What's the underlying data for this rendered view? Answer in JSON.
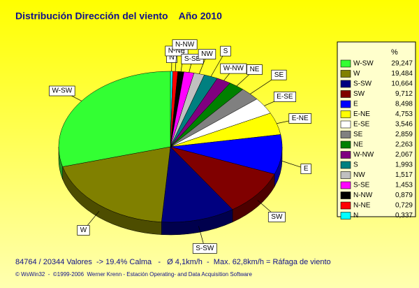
{
  "chart_data": {
    "type": "pie",
    "title": "Distribución Dirección del viento    Año 2010",
    "legend_title": "%",
    "categories": [
      "W-SW",
      "W",
      "S-SW",
      "SW",
      "E",
      "E-NE",
      "E-SE",
      "SE",
      "NE",
      "W-NW",
      "S",
      "NW",
      "S-SE",
      "N-NW",
      "N-NE",
      "N"
    ],
    "values": [
      29.247,
      19.484,
      10.664,
      9.712,
      8.498,
      4.753,
      3.546,
      2.859,
      2.263,
      2.067,
      1.993,
      1.517,
      1.453,
      0.879,
      0.729,
      0.337
    ],
    "value_labels": [
      "29,247",
      "19,484",
      "10,664",
      "9,712",
      "8,498",
      "4,753",
      "3,546",
      "2,859",
      "2,263",
      "2,067",
      "1,993",
      "1,517",
      "1,453",
      "0,879",
      "0,729",
      "0,337"
    ],
    "colors": [
      "#33ff33",
      "#808000",
      "#000080",
      "#800000",
      "#0000ff",
      "#ffff00",
      "#ffffff",
      "#808080",
      "#008000",
      "#800080",
      "#008080",
      "#c0c0c0",
      "#ff00ff",
      "#000000",
      "#ff0000",
      "#00ffff"
    ],
    "footnote": "84764 / 20344 Valores  -> 19.4% Calma   -   Ø 4,1km/h  -  Max. 62,8km/h = Ráfaga de viento",
    "credit": "© WsWin32  -  ©1999-2006  Werner Krenn - Estación Operating- and Data Acquisition Software"
  }
}
